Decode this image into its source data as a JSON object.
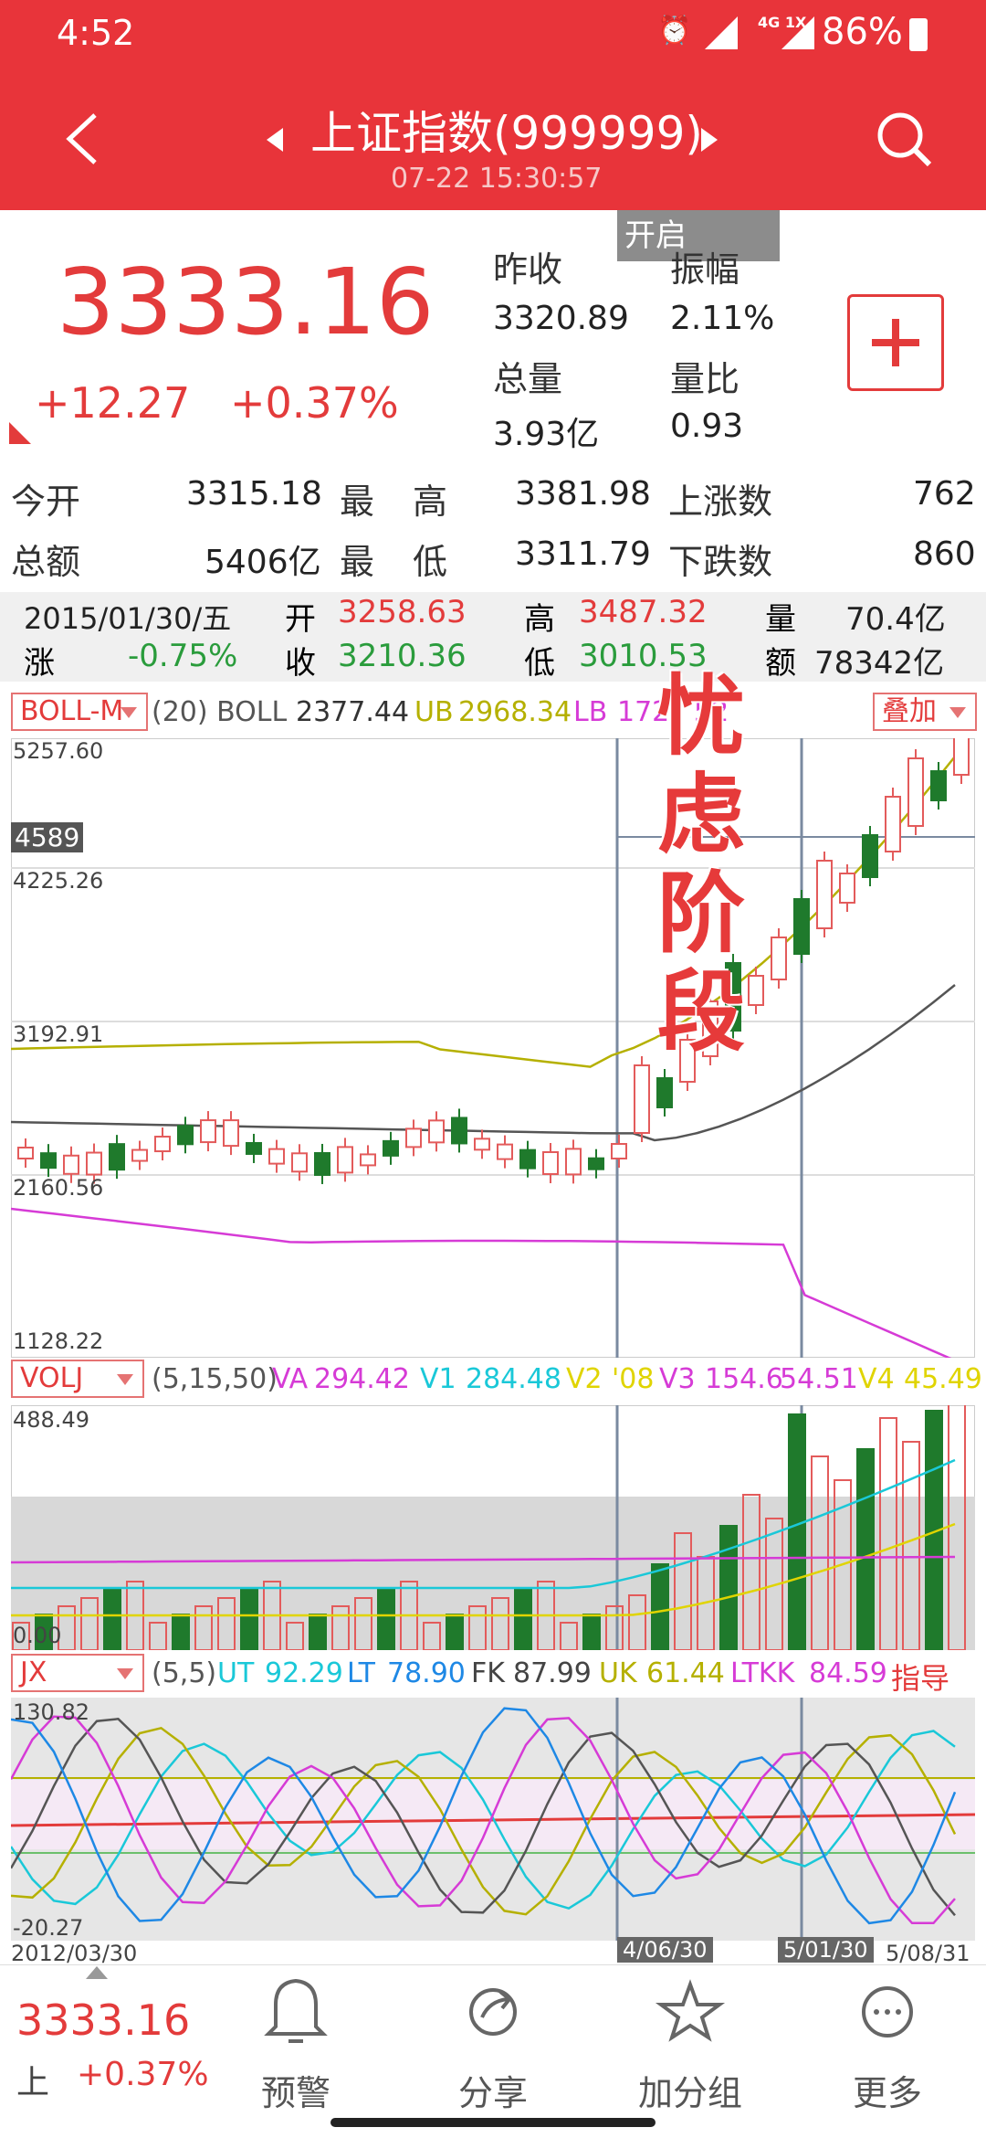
{
  "status_bar": {
    "time": "4:52",
    "battery": "86%",
    "network": "4G 1X"
  },
  "header": {
    "title": "上证指数(999999)",
    "datetime": "07-22 15:30:57"
  },
  "quote": {
    "price": "3333.16",
    "change": "+12.27",
    "change_pct": "+0.37%",
    "prev_close_label": "昨收",
    "prev_close": "3320.89",
    "amplitude_label": "振幅",
    "amplitude": "2.11%",
    "volume_label": "总量",
    "volume": "3.93亿",
    "vol_ratio_label": "量比",
    "vol_ratio": "0.93",
    "overlay_tab": "开启"
  },
  "stats": {
    "open_label": "今开",
    "open": "3315.18",
    "high_label_a": "最",
    "high_label_b": "高",
    "high": "3381.98",
    "up_label": "上涨数",
    "up": "762",
    "amount_label": "总额",
    "amount": "5406亿",
    "low_label_a": "最",
    "low_label_b": "低",
    "low": "3311.79",
    "down_label": "下跌数",
    "down": "860"
  },
  "day": {
    "date": "2015/01/30/五",
    "open_label": "开",
    "open": "3258.63",
    "high_label": "高",
    "high": "3487.32",
    "vol_label": "量",
    "vol": "70.4亿",
    "chg_label": "涨",
    "chg": "-0.75%",
    "close_label": "收",
    "close": "3210.36",
    "low_label": "低",
    "low": "3010.53",
    "amt_label": "额",
    "amt": "78342亿"
  },
  "boll": {
    "selector": "BOLL-M",
    "params": "(20) BOLL",
    "boll_val": "2377.44",
    "ub_label": "UB",
    "ub": "2968.34",
    "lb_label": "LB",
    "lb": "172",
    "lb_tail": "52",
    "overlay_btn": "叠加",
    "y_labels": [
      "5257.60",
      "4225.26",
      "3192.91",
      "2160.56",
      "1128.22"
    ],
    "crosshair_value": "4589",
    "annotation": "忧虑阶段"
  },
  "volume": {
    "selector": "VOLJ",
    "params": "(5,15,50)",
    "va_label": "VA",
    "va": "294.42",
    "v1_label": "V1",
    "v1": "284.48",
    "v2_label": "V2",
    "v2": "'08",
    "v3_label": "V3",
    "v3": "154.6",
    "v3_tail": "54.51",
    "v4_label": "V4",
    "v4": "45.49",
    "y_top": "488.49",
    "y_bottom": "0.00"
  },
  "jx": {
    "selector": "JX",
    "params": "(5,5)",
    "ut_label": "UT",
    "ut": "92.29",
    "lt_label": "LT",
    "lt": "78.90",
    "fk_label": "FK",
    "fk": "87.99",
    "uk_label": "UK",
    "uk": "61.44",
    "ltkk_label": "LTKK",
    "ltkk": "84.59",
    "guide": "指导",
    "y_top": "130.82",
    "y_bottom": "-20.27",
    "dates": [
      "2012/03/30",
      "4/06/30",
      "5/01/30",
      "5/08/31"
    ]
  },
  "footer": {
    "price": "3333.16",
    "market": "上",
    "change_pct": "+0.37%",
    "items": [
      {
        "label": "预警",
        "icon": "bell-icon"
      },
      {
        "label": "分享",
        "icon": "share-icon"
      },
      {
        "label": "加分组",
        "icon": "star-icon"
      },
      {
        "label": "更多",
        "icon": "more-icon"
      }
    ]
  },
  "colors": {
    "header": "#e8343a",
    "up": "#e33b3b",
    "down": "#2a9c3c",
    "mid_line": "#b5b000",
    "lb_line": "#d63bd6"
  }
}
